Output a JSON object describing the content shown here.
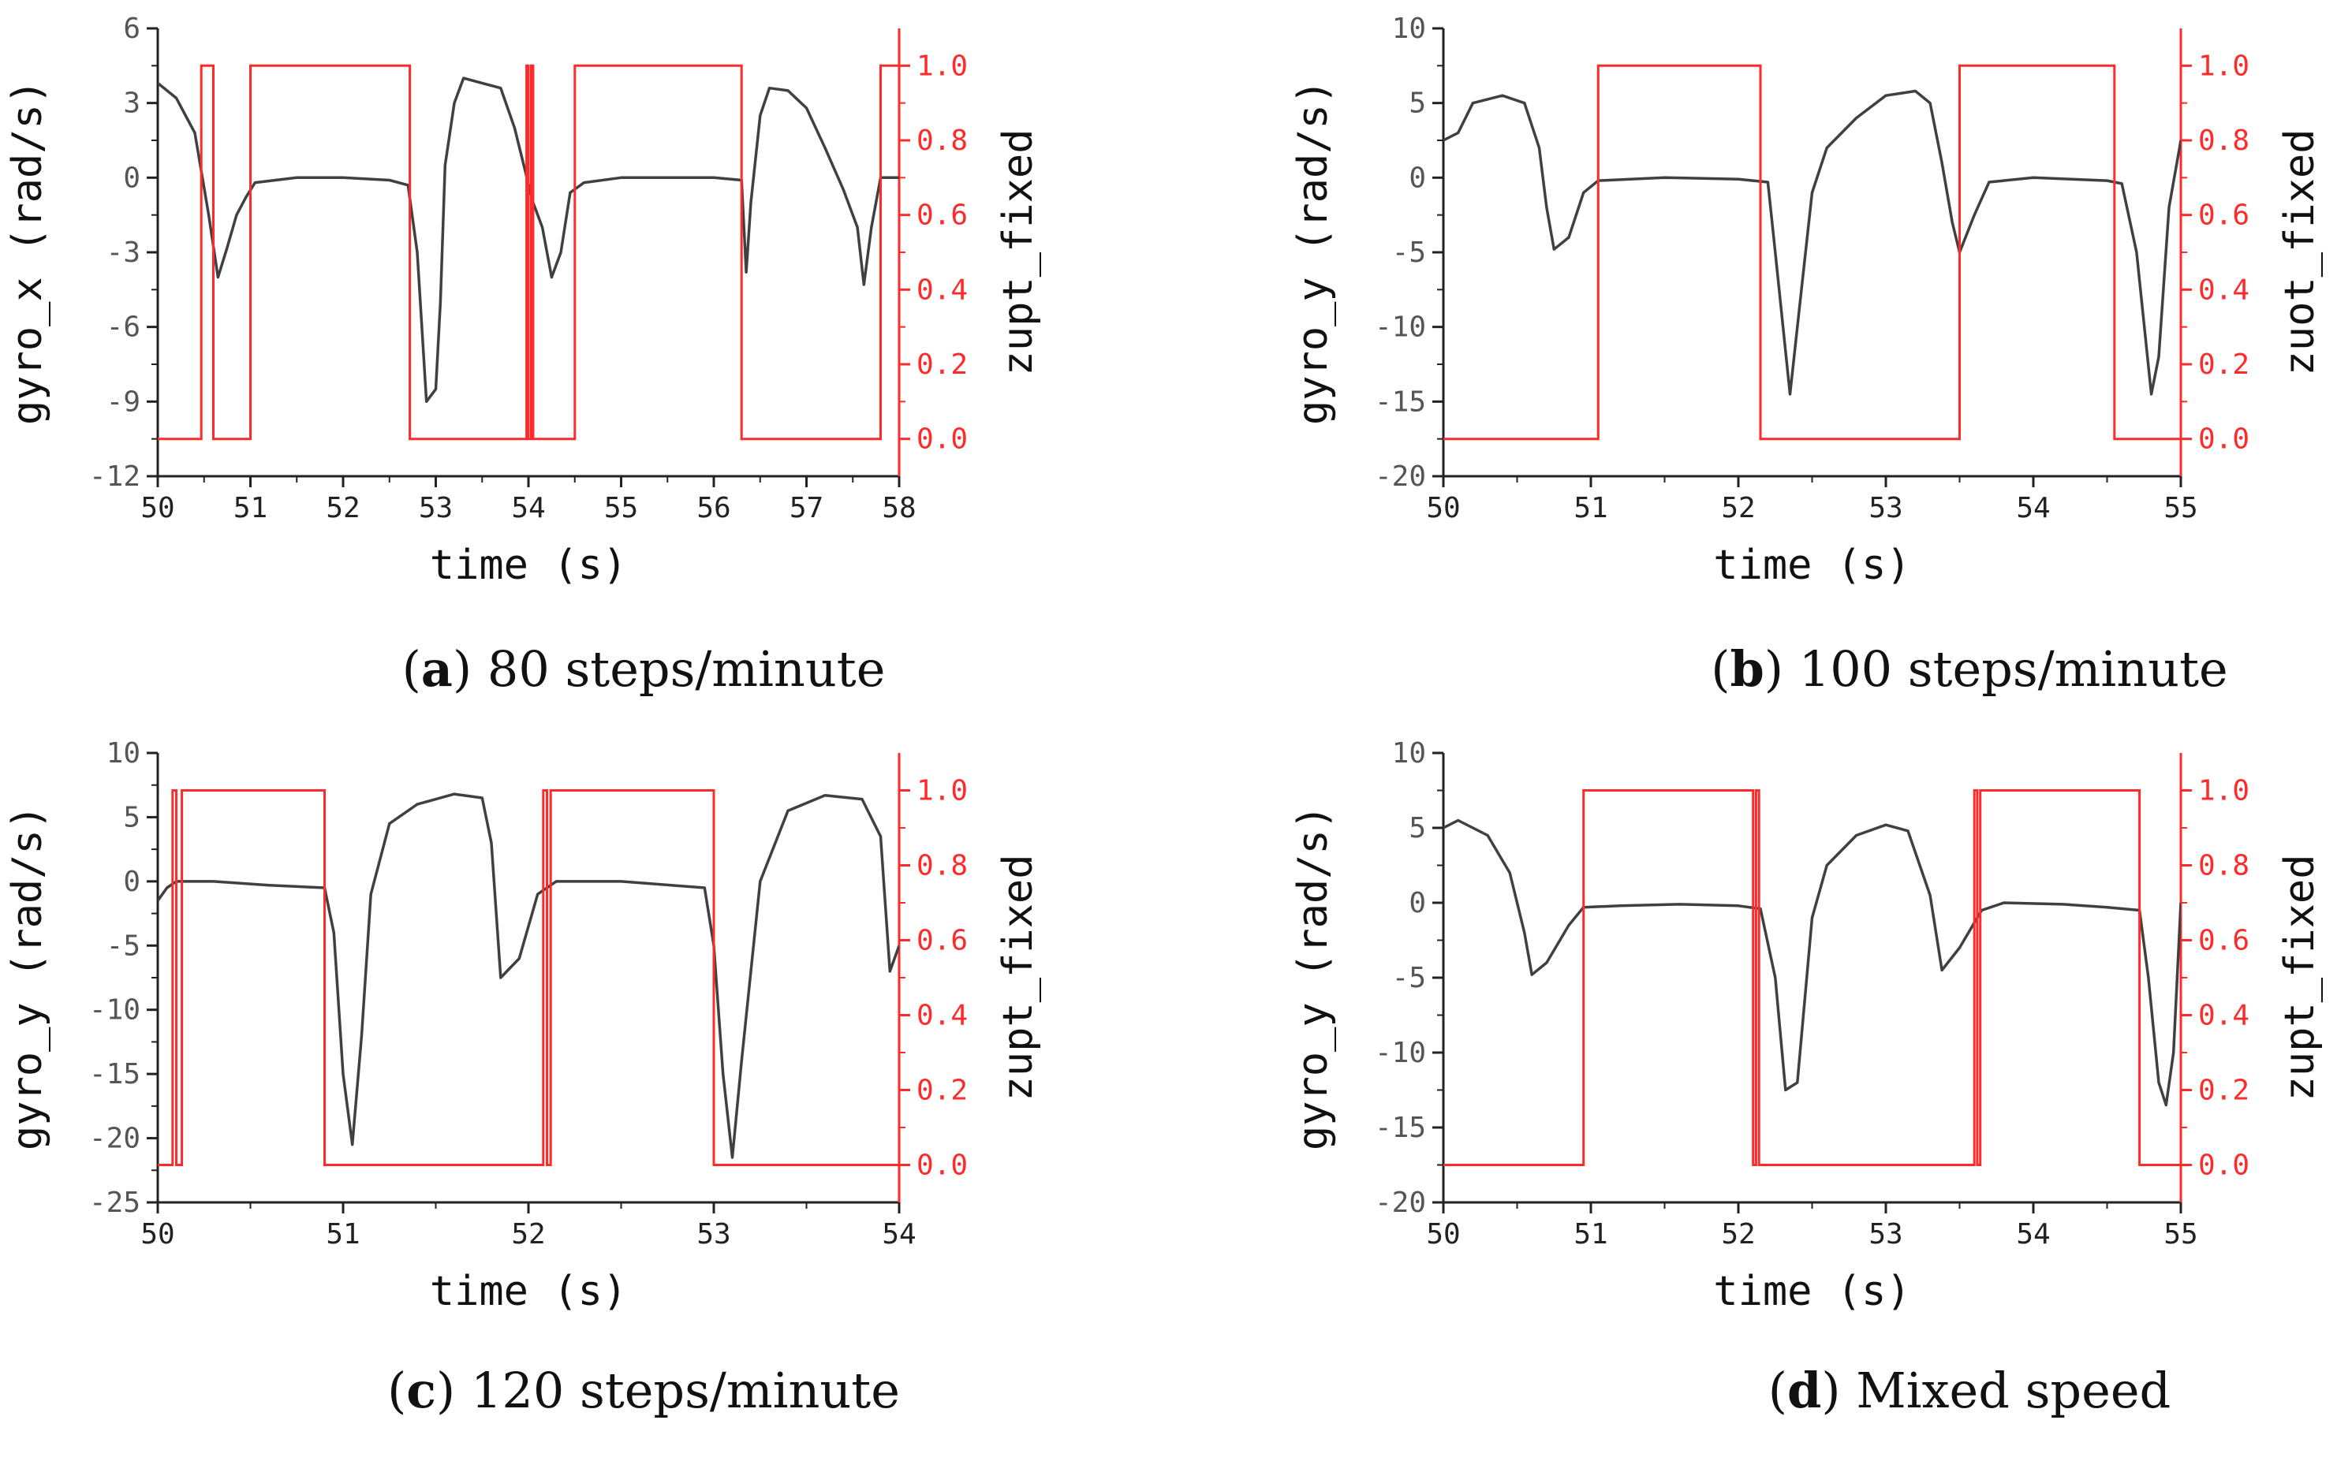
{
  "colors": {
    "gyro": "#404040",
    "zupt": "#ff2a2a",
    "axis": "#222222"
  },
  "charts": [
    {
      "id": "a",
      "caption": {
        "letter": "a",
        "text": "80 steps/minute"
      },
      "xlabel": "time (s)",
      "ylabel": "gyro_x (rad/s)",
      "y2label": "zupt_fixed",
      "xlim": [
        50,
        58
      ],
      "xticks": [
        "50",
        "51",
        "52",
        "53",
        "54",
        "55",
        "56",
        "57",
        "58"
      ],
      "ylim": [
        -12,
        6
      ],
      "yticks": [
        "-12",
        "-9",
        "-6",
        "-3",
        "0",
        "3",
        "6"
      ],
      "y2lim": [
        -0.1,
        1.1
      ],
      "y2ticks": [
        "0.0",
        "0.2",
        "0.4",
        "0.6",
        "0.8",
        "1.0"
      ],
      "gyro": [
        [
          50,
          3.8
        ],
        [
          50.2,
          3.2
        ],
        [
          50.4,
          1.8
        ],
        [
          50.55,
          -1.5
        ],
        [
          50.65,
          -4.0
        ],
        [
          50.75,
          -2.8
        ],
        [
          50.85,
          -1.5
        ],
        [
          50.95,
          -0.8
        ],
        [
          51.05,
          -0.2
        ],
        [
          51.5,
          0.0
        ],
        [
          52.0,
          0.0
        ],
        [
          52.5,
          -0.1
        ],
        [
          52.7,
          -0.3
        ],
        [
          52.8,
          -3.0
        ],
        [
          52.9,
          -9.0
        ],
        [
          53.0,
          -8.5
        ],
        [
          53.05,
          -5.0
        ],
        [
          53.1,
          0.5
        ],
        [
          53.2,
          3.0
        ],
        [
          53.3,
          4.0
        ],
        [
          53.5,
          3.8
        ],
        [
          53.7,
          3.6
        ],
        [
          53.85,
          2.0
        ],
        [
          53.95,
          0.5
        ],
        [
          54.05,
          -1.0
        ],
        [
          54.15,
          -2.0
        ],
        [
          54.25,
          -4.0
        ],
        [
          54.35,
          -3.0
        ],
        [
          54.45,
          -0.6
        ],
        [
          54.6,
          -0.2
        ],
        [
          55.0,
          0.0
        ],
        [
          55.5,
          0.0
        ],
        [
          56.0,
          0.0
        ],
        [
          56.3,
          -0.1
        ],
        [
          56.35,
          -3.8
        ],
        [
          56.4,
          -1.0
        ],
        [
          56.5,
          2.5
        ],
        [
          56.6,
          3.6
        ],
        [
          56.8,
          3.5
        ],
        [
          57.0,
          2.8
        ],
        [
          57.2,
          1.2
        ],
        [
          57.4,
          -0.5
        ],
        [
          57.55,
          -2.0
        ],
        [
          57.62,
          -4.3
        ],
        [
          57.7,
          -2.0
        ],
        [
          57.8,
          0.0
        ],
        [
          58.0,
          0.0
        ]
      ],
      "zupt": [
        [
          50,
          0
        ],
        [
          50.47,
          0
        ],
        [
          50.47,
          1
        ],
        [
          50.6,
          1
        ],
        [
          50.6,
          0
        ],
        [
          51.0,
          0
        ],
        [
          51.0,
          1
        ],
        [
          52.72,
          1
        ],
        [
          52.72,
          0
        ],
        [
          53.98,
          0
        ],
        [
          53.98,
          1
        ],
        [
          54.0,
          1
        ],
        [
          54.0,
          0
        ],
        [
          54.03,
          0
        ],
        [
          54.03,
          1
        ],
        [
          54.05,
          1
        ],
        [
          54.05,
          0
        ],
        [
          54.5,
          0
        ],
        [
          54.5,
          1
        ],
        [
          56.3,
          1
        ],
        [
          56.3,
          0
        ],
        [
          57.8,
          0
        ],
        [
          57.8,
          1
        ],
        [
          58,
          1
        ]
      ]
    },
    {
      "id": "b",
      "caption": {
        "letter": "b",
        "text": "100 steps/minute"
      },
      "xlabel": "time (s)",
      "ylabel": "gyro_y (rad/s)",
      "y2label": "zuot_fixed",
      "xlim": [
        50,
        55
      ],
      "xticks": [
        "50",
        "51",
        "52",
        "53",
        "54",
        "55"
      ],
      "ylim": [
        -20,
        10
      ],
      "yticks": [
        "-20",
        "-15",
        "-10",
        "-5",
        "0",
        "5",
        "10"
      ],
      "y2lim": [
        -0.1,
        1.1
      ],
      "y2ticks": [
        "0.0",
        "0.2",
        "0.4",
        "0.6",
        "0.8",
        "1.0"
      ],
      "gyro": [
        [
          50,
          2.5
        ],
        [
          50.1,
          3.0
        ],
        [
          50.2,
          5.0
        ],
        [
          50.4,
          5.5
        ],
        [
          50.55,
          5.0
        ],
        [
          50.65,
          2.0
        ],
        [
          50.7,
          -2.0
        ],
        [
          50.75,
          -4.8
        ],
        [
          50.85,
          -4.0
        ],
        [
          50.95,
          -1.0
        ],
        [
          51.05,
          -0.2
        ],
        [
          51.5,
          0.0
        ],
        [
          52.0,
          -0.1
        ],
        [
          52.2,
          -0.3
        ],
        [
          52.25,
          -5.0
        ],
        [
          52.35,
          -14.5
        ],
        [
          52.4,
          -10.0
        ],
        [
          52.5,
          -1.0
        ],
        [
          52.6,
          2.0
        ],
        [
          52.8,
          4.0
        ],
        [
          53.0,
          5.5
        ],
        [
          53.2,
          5.8
        ],
        [
          53.3,
          5.0
        ],
        [
          53.38,
          1.0
        ],
        [
          53.45,
          -3.0
        ],
        [
          53.5,
          -5.0
        ],
        [
          53.6,
          -2.5
        ],
        [
          53.7,
          -0.3
        ],
        [
          54.0,
          0.0
        ],
        [
          54.5,
          -0.2
        ],
        [
          54.6,
          -0.4
        ],
        [
          54.7,
          -5.0
        ],
        [
          54.8,
          -14.5
        ],
        [
          54.85,
          -12.0
        ],
        [
          54.92,
          -2.0
        ],
        [
          55.0,
          2.5
        ]
      ],
      "zupt": [
        [
          50,
          0
        ],
        [
          51.05,
          0
        ],
        [
          51.05,
          1
        ],
        [
          52.15,
          1
        ],
        [
          52.15,
          0
        ],
        [
          53.5,
          0
        ],
        [
          53.5,
          1
        ],
        [
          54.55,
          1
        ],
        [
          54.55,
          0
        ],
        [
          55,
          0
        ]
      ]
    },
    {
      "id": "c",
      "caption": {
        "letter": "c",
        "text": "120 steps/minute"
      },
      "xlabel": "time (s)",
      "ylabel": "gyro_y (rad/s)",
      "y2label": "zupt_fixed",
      "xlim": [
        50,
        54
      ],
      "xticks": [
        "50",
        "51",
        "52",
        "53",
        "54"
      ],
      "ylim": [
        -25,
        10
      ],
      "yticks": [
        "-25",
        "-20",
        "-15",
        "-10",
        "-5",
        "0",
        "5",
        "10"
      ],
      "y2lim": [
        -0.1,
        1.1
      ],
      "y2ticks": [
        "0.0",
        "0.2",
        "0.4",
        "0.6",
        "0.8",
        "1.0"
      ],
      "gyro": [
        [
          50,
          -1.5
        ],
        [
          50.05,
          -0.5
        ],
        [
          50.1,
          0.0
        ],
        [
          50.3,
          0.0
        ],
        [
          50.6,
          -0.3
        ],
        [
          50.9,
          -0.5
        ],
        [
          50.95,
          -4.0
        ],
        [
          51.0,
          -15.0
        ],
        [
          51.05,
          -20.5
        ],
        [
          51.1,
          -12.0
        ],
        [
          51.15,
          -1.0
        ],
        [
          51.25,
          4.5
        ],
        [
          51.4,
          6.0
        ],
        [
          51.6,
          6.8
        ],
        [
          51.75,
          6.5
        ],
        [
          51.8,
          3.0
        ],
        [
          51.85,
          -7.5
        ],
        [
          51.95,
          -6.0
        ],
        [
          52.05,
          -1.0
        ],
        [
          52.15,
          0.0
        ],
        [
          52.5,
          0.0
        ],
        [
          52.95,
          -0.5
        ],
        [
          53.0,
          -5.0
        ],
        [
          53.05,
          -15.0
        ],
        [
          53.1,
          -21.5
        ],
        [
          53.15,
          -14.0
        ],
        [
          53.25,
          0.0
        ],
        [
          53.4,
          5.5
        ],
        [
          53.6,
          6.7
        ],
        [
          53.8,
          6.4
        ],
        [
          53.9,
          3.5
        ],
        [
          53.95,
          -7.0
        ],
        [
          54.0,
          -5.0
        ]
      ],
      "zupt": [
        [
          50,
          0
        ],
        [
          50.08,
          0
        ],
        [
          50.08,
          1
        ],
        [
          50.1,
          1
        ],
        [
          50.1,
          0
        ],
        [
          50.13,
          0
        ],
        [
          50.13,
          1
        ],
        [
          50.9,
          1
        ],
        [
          50.9,
          0
        ],
        [
          52.08,
          0
        ],
        [
          52.08,
          1
        ],
        [
          52.1,
          1
        ],
        [
          52.1,
          0
        ],
        [
          52.12,
          0
        ],
        [
          52.12,
          1
        ],
        [
          53.0,
          1
        ],
        [
          53.0,
          0
        ],
        [
          54,
          0
        ]
      ]
    },
    {
      "id": "d",
      "caption": {
        "letter": "d",
        "text": "Mixed speed"
      },
      "xlabel": "time (s)",
      "ylabel": "gyro_y (rad/s)",
      "y2label": "zupt_fixed",
      "xlim": [
        50,
        55
      ],
      "xticks": [
        "50",
        "51",
        "52",
        "53",
        "54",
        "55"
      ],
      "ylim": [
        -20,
        10
      ],
      "yticks": [
        "-20",
        "-15",
        "-10",
        "-5",
        "0",
        "5",
        "10"
      ],
      "y2lim": [
        -0.1,
        1.1
      ],
      "y2ticks": [
        "0.0",
        "0.2",
        "0.4",
        "0.6",
        "0.8",
        "1.0"
      ],
      "gyro": [
        [
          50,
          5.0
        ],
        [
          50.1,
          5.5
        ],
        [
          50.3,
          4.5
        ],
        [
          50.45,
          2.0
        ],
        [
          50.55,
          -2.0
        ],
        [
          50.6,
          -4.8
        ],
        [
          50.7,
          -4.0
        ],
        [
          50.85,
          -1.5
        ],
        [
          50.95,
          -0.3
        ],
        [
          51.2,
          -0.2
        ],
        [
          51.6,
          -0.1
        ],
        [
          52.0,
          -0.2
        ],
        [
          52.15,
          -0.4
        ],
        [
          52.25,
          -5.0
        ],
        [
          52.32,
          -12.5
        ],
        [
          52.4,
          -12.0
        ],
        [
          52.5,
          -1.0
        ],
        [
          52.6,
          2.5
        ],
        [
          52.8,
          4.5
        ],
        [
          53.0,
          5.2
        ],
        [
          53.15,
          4.8
        ],
        [
          53.3,
          0.5
        ],
        [
          53.38,
          -4.5
        ],
        [
          53.5,
          -3.0
        ],
        [
          53.65,
          -0.5
        ],
        [
          53.8,
          0.0
        ],
        [
          54.2,
          -0.1
        ],
        [
          54.5,
          -0.3
        ],
        [
          54.72,
          -0.5
        ],
        [
          54.78,
          -5.0
        ],
        [
          54.85,
          -12.0
        ],
        [
          54.9,
          -13.5
        ],
        [
          54.95,
          -10.0
        ],
        [
          55.0,
          0.0
        ]
      ],
      "zupt": [
        [
          50,
          0
        ],
        [
          50.95,
          0
        ],
        [
          50.95,
          1
        ],
        [
          52.1,
          1
        ],
        [
          52.1,
          0
        ],
        [
          52.12,
          0
        ],
        [
          52.12,
          1
        ],
        [
          52.14,
          1
        ],
        [
          52.14,
          0
        ],
        [
          53.6,
          0
        ],
        [
          53.6,
          1
        ],
        [
          53.62,
          1
        ],
        [
          53.62,
          0
        ],
        [
          53.64,
          0
        ],
        [
          53.64,
          1
        ],
        [
          54.72,
          1
        ],
        [
          54.72,
          0
        ],
        [
          55,
          0
        ]
      ]
    }
  ]
}
